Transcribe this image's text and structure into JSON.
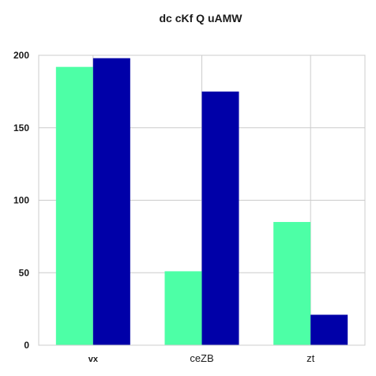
{
  "chart_data": {
    "type": "bar",
    "title": "dc cKf Q uAMW",
    "xlabel": "",
    "ylabel": "",
    "categories": [
      "vx",
      "ceZB",
      "zt"
    ],
    "series": [
      {
        "values": [
          192,
          51,
          85
        ],
        "color": "#4dffa6"
      },
      {
        "values": [
          198,
          175,
          21
        ],
        "color": "#0000a8"
      }
    ],
    "ylim": [
      0,
      200
    ],
    "yticks": [
      0,
      50,
      100,
      150,
      200
    ],
    "grid": true,
    "legend": "none"
  }
}
